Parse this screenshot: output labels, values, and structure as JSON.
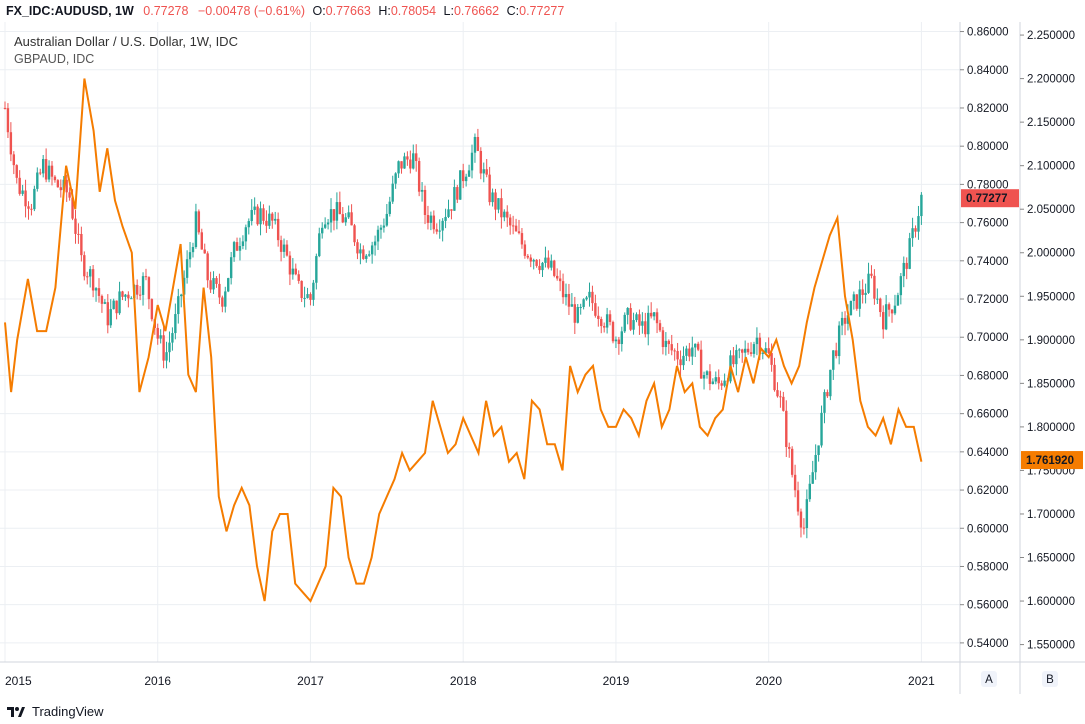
{
  "header": {
    "symbol": "FX_IDC:AUDUSD, 1W",
    "last": "0.77278",
    "change": "−0.00478 (−0.61%)",
    "o_label": "O:",
    "o_value": "0.77663",
    "h_label": "H:",
    "h_value": "0.78054",
    "l_label": "L:",
    "l_value": "0.76662",
    "c_label": "C:",
    "c_value": "0.77277"
  },
  "footer": {
    "brand": "TradingView"
  },
  "colors": {
    "up": "#26a69a",
    "down": "#ef5350",
    "overlay": "#f57c00",
    "grid": "#eceff3",
    "axis_bg": "#ffffff"
  },
  "chart_data": {
    "type": "candlestick",
    "title": "Australian Dollar / U.S. Dollar, 1W, IDC",
    "overlay_title": "GBPAUD, IDC",
    "x_ticks": [
      "2015",
      "2016",
      "2017",
      "2018",
      "2019",
      "2020",
      "2021"
    ],
    "y_left": {
      "ylim": [
        0.53,
        0.865
      ],
      "ticks": [
        "0.86000",
        "0.84000",
        "0.82000",
        "0.80000",
        "0.78000",
        "0.76000",
        "0.74000",
        "0.72000",
        "0.70000",
        "0.68000",
        "0.66000",
        "0.64000",
        "0.62000",
        "0.60000",
        "0.58000",
        "0.56000",
        "0.54000"
      ],
      "last_label": "0.77277",
      "last_value": 0.77277
    },
    "y_right": {
      "ylim": [
        1.53,
        2.265
      ],
      "ticks": [
        "2.250000",
        "2.200000",
        "2.150000",
        "2.100000",
        "2.050000",
        "2.000000",
        "1.950000",
        "1.900000",
        "1.850000",
        "1.800000",
        "1.750000",
        "1.700000",
        "1.650000",
        "1.600000",
        "1.550000"
      ],
      "last_label": "1.761920",
      "last_value": 1.76192
    },
    "axis_buttons": [
      "A",
      "B"
    ],
    "series": [
      {
        "name": "AUDUSD",
        "axis": "left",
        "t": [
          2015.0,
          2015.08,
          2015.17,
          2015.25,
          2015.33,
          2015.42,
          2015.5,
          2015.58,
          2015.67,
          2015.75,
          2015.83,
          2015.92,
          2016.0,
          2016.05,
          2016.12,
          2016.25,
          2016.33,
          2016.42,
          2016.5,
          2016.58,
          2016.67,
          2016.75,
          2016.83,
          2016.92,
          2017.0,
          2017.08,
          2017.17,
          2017.25,
          2017.33,
          2017.42,
          2017.5,
          2017.58,
          2017.67,
          2017.75,
          2017.83,
          2017.92,
          2018.0,
          2018.08,
          2018.17,
          2018.25,
          2018.33,
          2018.42,
          2018.5,
          2018.58,
          2018.67,
          2018.75,
          2018.83,
          2018.92,
          2019.0,
          2019.08,
          2019.17,
          2019.25,
          2019.33,
          2019.42,
          2019.5,
          2019.58,
          2019.67,
          2019.75,
          2019.83,
          2019.92,
          2020.0,
          2020.08,
          2020.15,
          2020.2,
          2020.23,
          2020.27,
          2020.33,
          2020.42,
          2020.5,
          2020.58,
          2020.67,
          2020.75,
          2020.83,
          2020.92,
          2021.0
        ],
        "close": [
          0.82,
          0.78,
          0.77,
          0.79,
          0.78,
          0.775,
          0.74,
          0.73,
          0.71,
          0.72,
          0.725,
          0.73,
          0.7,
          0.69,
          0.71,
          0.76,
          0.73,
          0.72,
          0.745,
          0.76,
          0.765,
          0.76,
          0.745,
          0.725,
          0.72,
          0.765,
          0.765,
          0.76,
          0.745,
          0.75,
          0.765,
          0.79,
          0.795,
          0.765,
          0.76,
          0.77,
          0.785,
          0.8,
          0.775,
          0.765,
          0.755,
          0.745,
          0.74,
          0.735,
          0.72,
          0.71,
          0.72,
          0.71,
          0.7,
          0.71,
          0.705,
          0.71,
          0.695,
          0.69,
          0.695,
          0.68,
          0.675,
          0.685,
          0.69,
          0.7,
          0.69,
          0.665,
          0.63,
          0.61,
          0.6,
          0.62,
          0.65,
          0.69,
          0.71,
          0.72,
          0.73,
          0.71,
          0.72,
          0.745,
          0.773
        ]
      },
      {
        "name": "GBPAUD",
        "axis": "right",
        "t": [
          2015.0,
          2015.04,
          2015.08,
          2015.15,
          2015.21,
          2015.27,
          2015.33,
          2015.4,
          2015.46,
          2015.52,
          2015.58,
          2015.62,
          2015.67,
          2015.72,
          2015.77,
          2015.83,
          2015.88,
          2015.94,
          2016.0,
          2016.05,
          2016.1,
          2016.15,
          2016.2,
          2016.25,
          2016.3,
          2016.35,
          2016.4,
          2016.45,
          2016.5,
          2016.55,
          2016.6,
          2016.65,
          2016.7,
          2016.75,
          2016.8,
          2016.85,
          2016.9,
          2016.95,
          2017.0,
          2017.05,
          2017.1,
          2017.15,
          2017.2,
          2017.25,
          2017.3,
          2017.35,
          2017.4,
          2017.45,
          2017.5,
          2017.55,
          2017.6,
          2017.65,
          2017.7,
          2017.75,
          2017.8,
          2017.85,
          2017.9,
          2017.95,
          2018.0,
          2018.05,
          2018.1,
          2018.15,
          2018.2,
          2018.25,
          2018.3,
          2018.35,
          2018.4,
          2018.45,
          2018.5,
          2018.55,
          2018.6,
          2018.65,
          2018.7,
          2018.75,
          2018.8,
          2018.85,
          2018.9,
          2018.95,
          2019.0,
          2019.05,
          2019.1,
          2019.15,
          2019.2,
          2019.25,
          2019.3,
          2019.35,
          2019.4,
          2019.45,
          2019.5,
          2019.55,
          2019.6,
          2019.65,
          2019.7,
          2019.75,
          2019.8,
          2019.85,
          2019.9,
          2019.95,
          2020.0,
          2020.05,
          2020.1,
          2020.15,
          2020.2,
          2020.25,
          2020.3,
          2020.35,
          2020.4,
          2020.45,
          2020.5,
          2020.55,
          2020.6,
          2020.65,
          2020.7,
          2020.75,
          2020.8,
          2020.85,
          2020.9,
          2020.95,
          2021.0
        ],
        "values": [
          1.92,
          1.84,
          1.9,
          1.97,
          1.91,
          1.91,
          1.96,
          2.1,
          2.05,
          2.2,
          2.14,
          2.07,
          2.12,
          2.06,
          2.03,
          2.0,
          1.84,
          1.88,
          1.94,
          1.91,
          1.96,
          2.01,
          1.86,
          1.84,
          1.96,
          1.88,
          1.72,
          1.68,
          1.71,
          1.73,
          1.71,
          1.64,
          1.6,
          1.68,
          1.7,
          1.7,
          1.62,
          1.61,
          1.6,
          1.62,
          1.64,
          1.73,
          1.72,
          1.65,
          1.62,
          1.62,
          1.65,
          1.7,
          1.72,
          1.74,
          1.77,
          1.75,
          1.76,
          1.77,
          1.83,
          1.8,
          1.77,
          1.78,
          1.81,
          1.79,
          1.77,
          1.83,
          1.79,
          1.8,
          1.76,
          1.77,
          1.74,
          1.83,
          1.82,
          1.78,
          1.78,
          1.75,
          1.87,
          1.84,
          1.86,
          1.87,
          1.82,
          1.8,
          1.8,
          1.82,
          1.81,
          1.79,
          1.83,
          1.85,
          1.8,
          1.82,
          1.87,
          1.84,
          1.85,
          1.8,
          1.79,
          1.81,
          1.82,
          1.87,
          1.84,
          1.88,
          1.85,
          1.89,
          1.88,
          1.9,
          1.87,
          1.85,
          1.87,
          1.92,
          1.96,
          1.99,
          2.02,
          2.04,
          1.95,
          1.9,
          1.83,
          1.8,
          1.79,
          1.81,
          1.78,
          1.82,
          1.8,
          1.8,
          1.76
        ]
      }
    ]
  }
}
